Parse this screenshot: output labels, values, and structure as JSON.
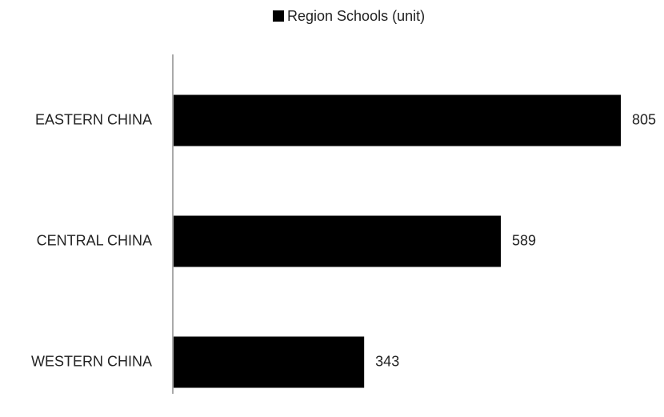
{
  "chart_data": {
    "type": "bar",
    "orientation": "horizontal",
    "categories": [
      "EASTERN CHINA",
      "CENTRAL CHINA",
      "WESTERN CHINA"
    ],
    "series": [
      {
        "name": "Region Schools (unit)",
        "color": "#000000",
        "values": [
          805,
          589,
          343
        ]
      }
    ]
  }
}
